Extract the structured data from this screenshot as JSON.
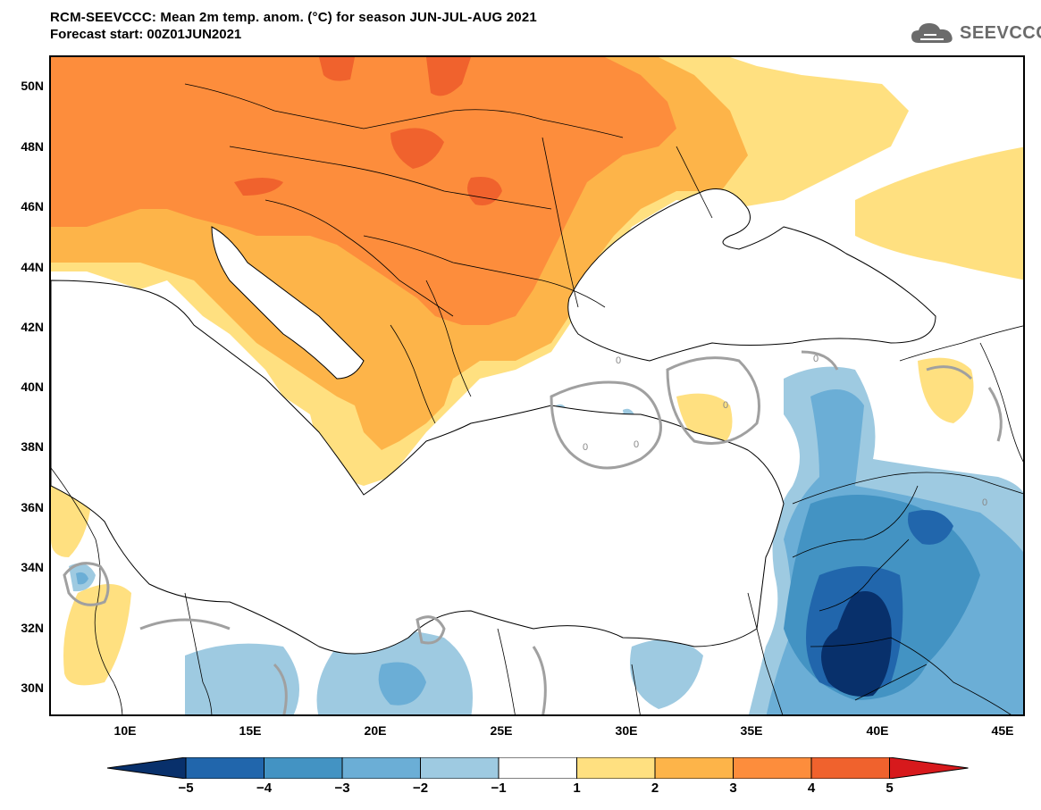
{
  "header": {
    "title": "RCM-SEEVCCC: Mean 2m temp. anom. (°C) for season JUN-JUL-AUG 2021",
    "subtitle": "Forecast start: 00Z01JUN2021",
    "logo_text": "SEEVCCC",
    "logo_icon": "cloud-icon"
  },
  "map": {
    "lat_labels": [
      "50N",
      "48N",
      "46N",
      "44N",
      "42N",
      "40N",
      "38N",
      "36N",
      "34N",
      "32N",
      "30N"
    ],
    "lon_labels": [
      "10E",
      "15E",
      "20E",
      "25E",
      "30E",
      "35E",
      "40E",
      "45E"
    ],
    "contour_label": "0",
    "colors": {
      "minus5": "#08306b",
      "minus4": "#2166ac",
      "minus3": "#4393c3",
      "minus2": "#6baed6",
      "minus1": "#9ecae1",
      "plus1": "#ffe080",
      "plus2": "#fdb449",
      "plus3": "#fd8d3c",
      "plus4": "#f0622d",
      "plus5": "#d7191c"
    }
  },
  "colorbar": {
    "ticks": [
      "−5",
      "−4",
      "−3",
      "−2",
      "−1",
      "1",
      "2",
      "3",
      "4",
      "5"
    ],
    "colors": [
      "#08306b",
      "#2166ac",
      "#4393c3",
      "#6baed6",
      "#9ecae1",
      "#ffffff",
      "#ffe080",
      "#fdb449",
      "#fd8d3c",
      "#f0622d",
      "#d7191c"
    ]
  }
}
